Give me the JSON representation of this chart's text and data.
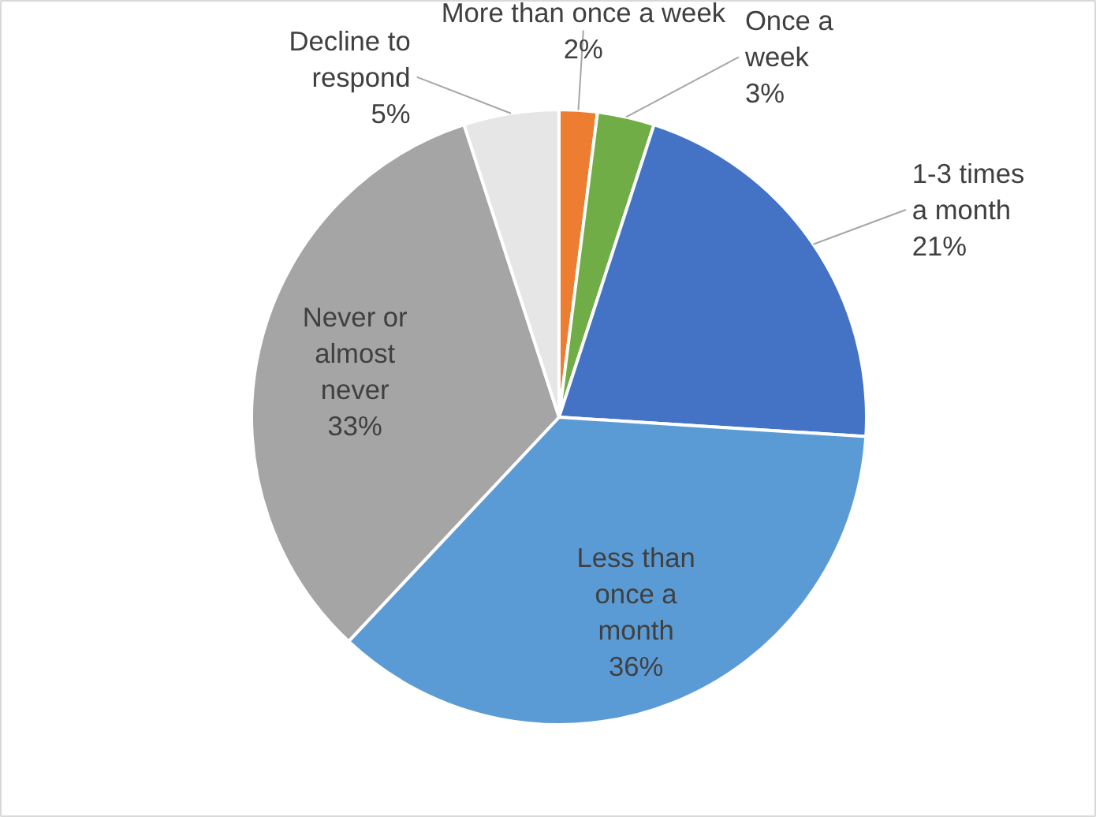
{
  "chart_data": {
    "type": "pie",
    "categories": [
      "More than once a week",
      "Once a week",
      "1-3 times a month",
      "Less than once a month",
      "Never or almost never",
      "Decline to respond"
    ],
    "values": [
      2,
      3,
      21,
      36,
      33,
      5
    ],
    "colors": [
      "#ed7d31",
      "#70ad47",
      "#4472c4",
      "#5b9bd5",
      "#a5a5a5",
      "#e7e6e6"
    ],
    "data_labels": true,
    "value_labels": [
      "2%",
      "3%",
      "21%",
      "36%",
      "33%",
      "5%"
    ]
  }
}
